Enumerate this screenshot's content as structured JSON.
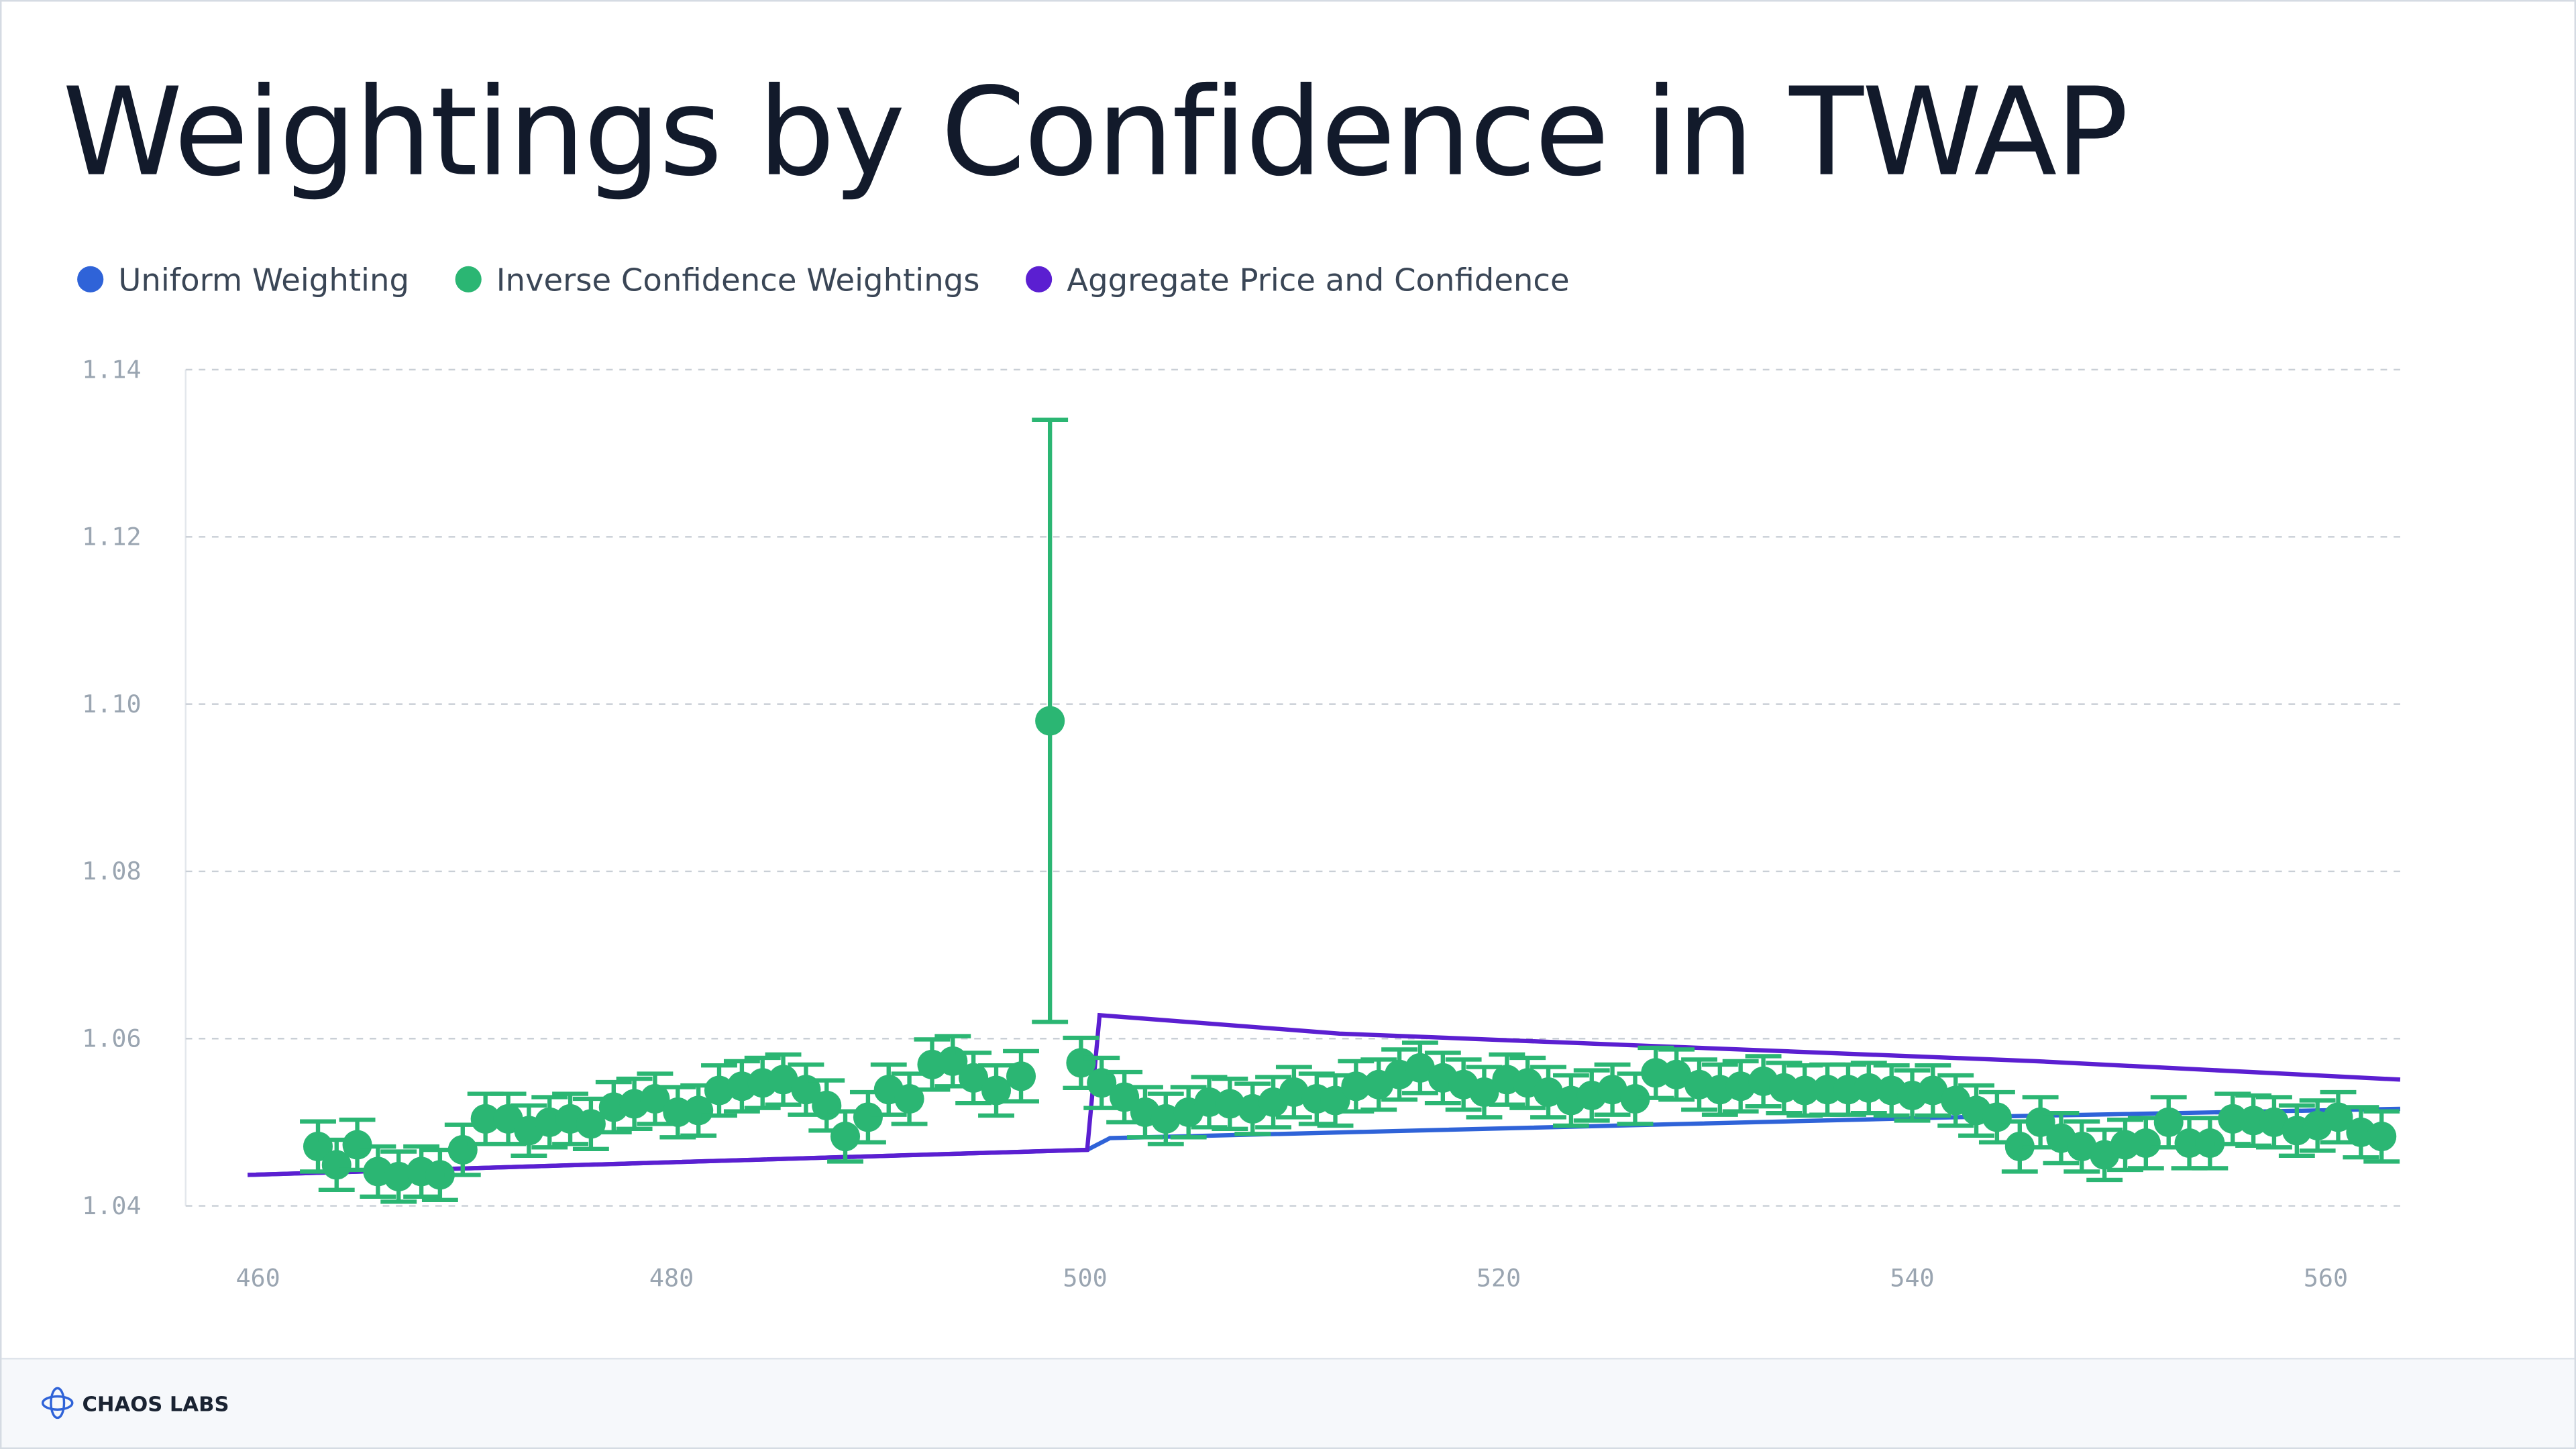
{
  "chart_data": {
    "type": "scatter",
    "title": "Weightings by Confidence in TWAP",
    "xlim": [
      456.5,
      563.6
    ],
    "xticks": [
      460,
      480,
      500,
      520,
      540,
      560
    ],
    "ylim": [
      1.04,
      1.14
    ],
    "yticks": [
      1.04,
      1.06,
      1.08,
      {
        "value": 1.1,
        "label": "1.10"
      },
      1.12,
      1.14
    ],
    "grid": true,
    "legend": "top-left",
    "series": [
      {
        "name": "Uniform Weighting",
        "type": "line",
        "color": "#2f63d8",
        "x": [
          459.5,
          500.1,
          501.2,
          542.1,
          563.6
        ],
        "values": [
          1.0437,
          1.0467,
          1.0481,
          1.0506,
          1.0516
        ]
      },
      {
        "name": "Inverse Confidence Weightings",
        "type": "scatter",
        "color": "#2bb673",
        "x": [
          462.9,
          463.8,
          464.8,
          465.8,
          466.8,
          467.9,
          468.8,
          469.9,
          471.0,
          472.1,
          473.1,
          474.1,
          475.1,
          476.1,
          477.2,
          478.2,
          479.2,
          480.3,
          481.3,
          482.3,
          483.4,
          484.4,
          485.4,
          486.5,
          487.5,
          488.4,
          489.5,
          490.5,
          491.5,
          492.6,
          493.6,
          494.6,
          495.7,
          496.9,
          498.3,
          499.8,
          500.8,
          501.9,
          502.9,
          503.9,
          505.0,
          506.0,
          507.0,
          508.1,
          509.1,
          510.1,
          511.2,
          512.1,
          513.1,
          514.2,
          515.2,
          516.2,
          517.3,
          518.3,
          519.3,
          520.4,
          521.4,
          522.4,
          523.5,
          524.5,
          525.5,
          526.6,
          527.6,
          528.6,
          529.7,
          530.7,
          531.7,
          532.8,
          533.8,
          534.8,
          535.9,
          536.9,
          537.9,
          539.0,
          540.0,
          541.0,
          542.1,
          543.1,
          544.1,
          545.2,
          546.2,
          547.2,
          548.2,
          549.3,
          550.3,
          551.3,
          552.4,
          553.4,
          554.4,
          555.5,
          556.5,
          557.5,
          558.6,
          559.6,
          560.6,
          561.7,
          562.7
        ],
        "values": [
          1.0471,
          1.0449,
          1.0473,
          1.0441,
          1.0435,
          1.0441,
          1.0437,
          1.0467,
          1.0504,
          1.0504,
          1.049,
          1.05,
          1.0504,
          1.0498,
          1.0518,
          1.0522,
          1.0528,
          1.0512,
          1.0514,
          1.0538,
          1.0543,
          1.0547,
          1.0551,
          1.0539,
          1.052,
          1.0483,
          1.0506,
          1.0539,
          1.0528,
          1.0569,
          1.0573,
          1.0553,
          1.0538,
          1.0555,
          1.098,
          1.0571,
          1.0547,
          1.053,
          1.0512,
          1.0504,
          1.0512,
          1.0524,
          1.0522,
          1.0516,
          1.0524,
          1.0536,
          1.0528,
          1.0526,
          1.0543,
          1.0545,
          1.0557,
          1.0565,
          1.0553,
          1.0545,
          1.0536,
          1.0551,
          1.0547,
          1.0536,
          1.0526,
          1.0532,
          1.0539,
          1.0528,
          1.0559,
          1.0557,
          1.0545,
          1.0539,
          1.0543,
          1.0549,
          1.0541,
          1.0538,
          1.0539,
          1.0539,
          1.0541,
          1.0538,
          1.0532,
          1.0538,
          1.0526,
          1.0514,
          1.0506,
          1.0471,
          1.05,
          1.0481,
          1.0471,
          1.0461,
          1.0473,
          1.0475,
          1.05,
          1.0475,
          1.0475,
          1.0504,
          1.0502,
          1.05,
          1.049,
          1.0496,
          1.0506,
          1.0488,
          1.0483
        ],
        "errors": [
          0.003,
          0.003,
          0.003,
          0.003,
          0.003,
          0.003,
          0.003,
          0.003,
          0.003,
          0.003,
          0.003,
          0.003,
          0.003,
          0.003,
          0.003,
          0.003,
          0.003,
          0.003,
          0.003,
          0.003,
          0.003,
          0.003,
          0.003,
          0.003,
          0.003,
          0.003,
          0.003,
          0.003,
          0.003,
          0.003,
          0.003,
          0.003,
          0.003,
          0.003,
          0.036,
          0.003,
          0.003,
          0.003,
          0.003,
          0.003,
          0.003,
          0.003,
          0.003,
          0.003,
          0.003,
          0.003,
          0.003,
          0.003,
          0.003,
          0.003,
          0.003,
          0.003,
          0.003,
          0.003,
          0.003,
          0.003,
          0.003,
          0.003,
          0.003,
          0.003,
          0.003,
          0.003,
          0.003,
          0.003,
          0.003,
          0.003,
          0.003,
          0.003,
          0.003,
          0.003,
          0.003,
          0.003,
          0.003,
          0.003,
          0.003,
          0.003,
          0.003,
          0.003,
          0.003,
          0.003,
          0.003,
          0.003,
          0.003,
          0.003,
          0.003,
          0.003,
          0.003,
          0.003,
          0.003,
          0.003,
          0.003,
          0.003,
          0.003,
          0.003,
          0.003,
          0.003,
          0.003
        ]
      },
      {
        "name": "Aggregate Price and Confidence",
        "type": "line",
        "color": "#5b1fd1",
        "x": [
          459.5,
          500.1,
          500.7,
          512.3,
          546.0,
          563.6
        ],
        "values": [
          1.0437,
          1.0467,
          1.0628,
          1.0606,
          1.0573,
          1.0551
        ]
      }
    ]
  },
  "footer": {
    "brand": "CHAOS LABS"
  }
}
